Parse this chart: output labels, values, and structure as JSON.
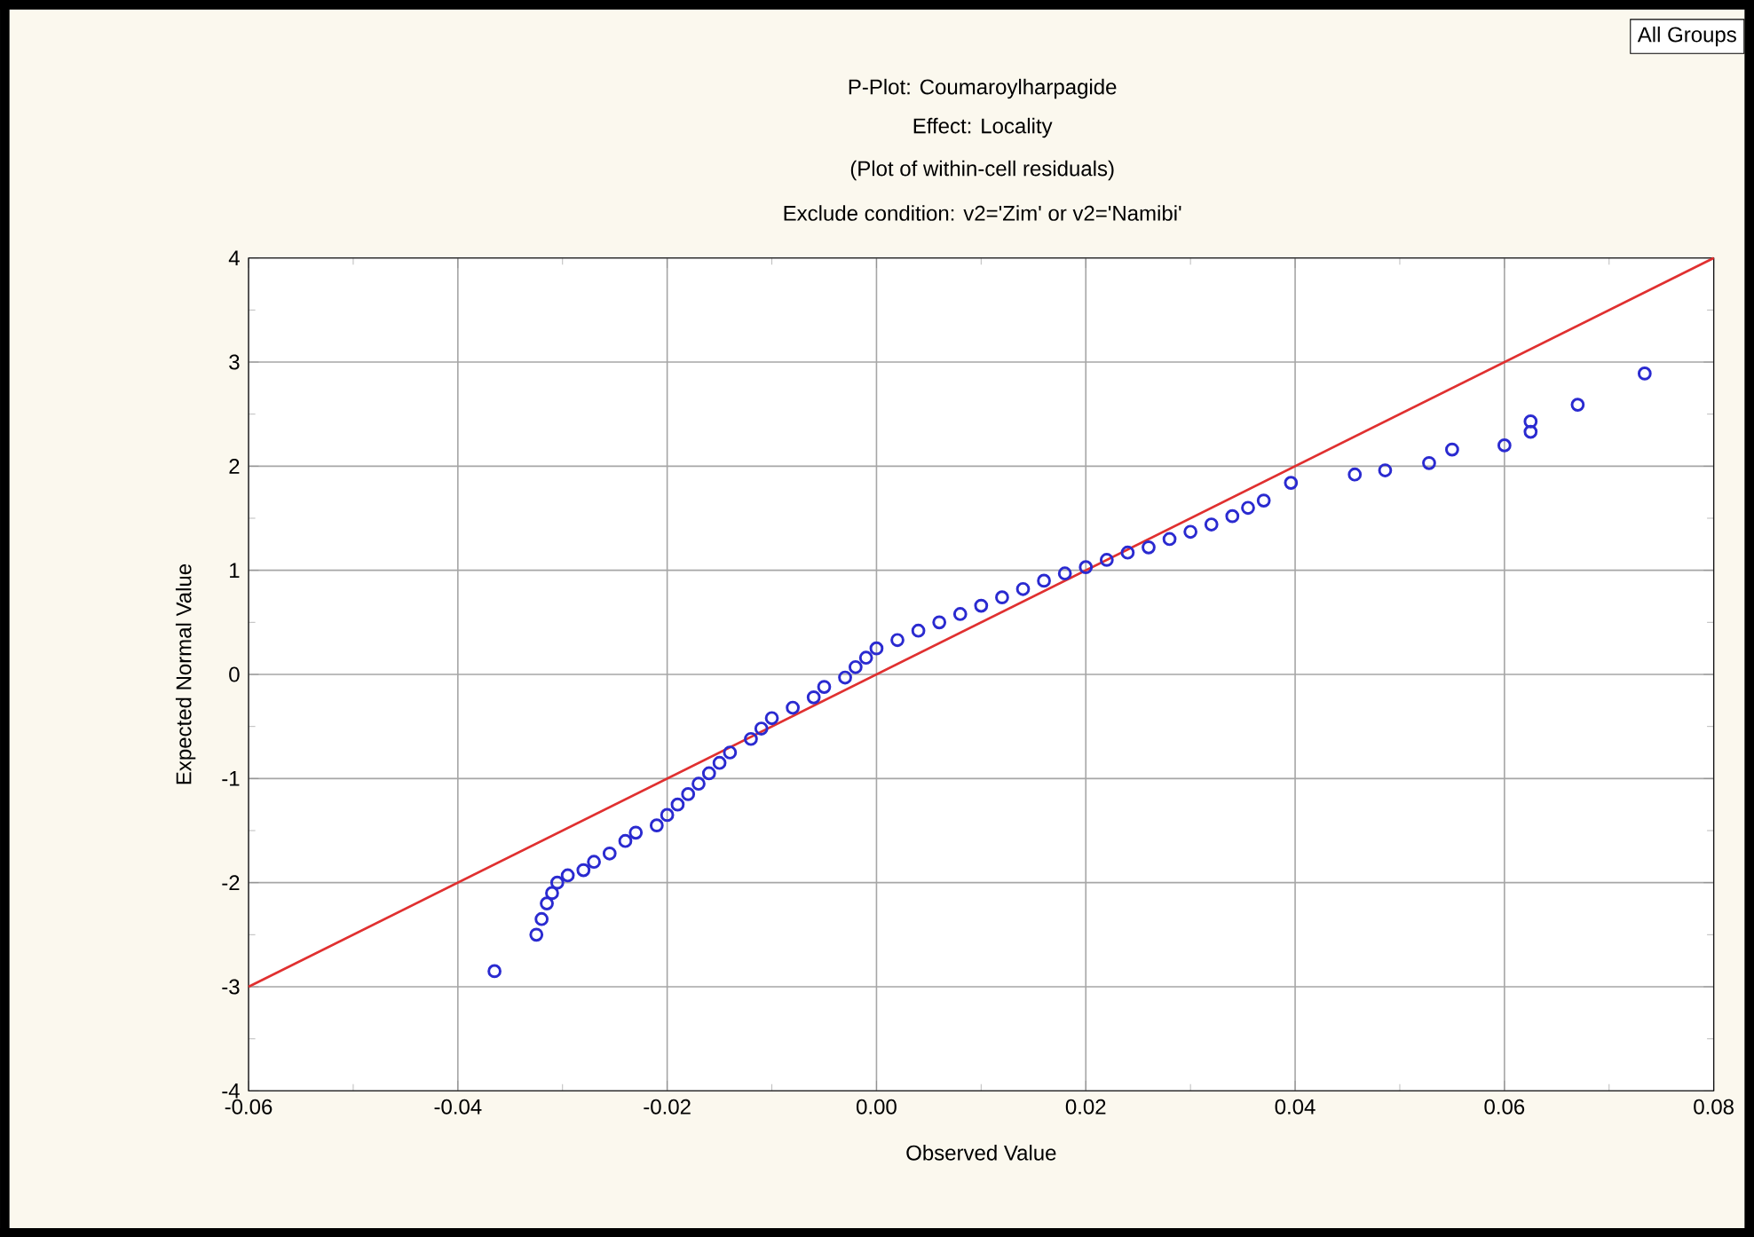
{
  "chart_data": {
    "type": "scatter",
    "title": "P-Plot: Coumaroylharpagide",
    "subtitle": "Effect: Locality",
    "xlabel": "Observed Value",
    "ylabel": "Expected Normal Value",
    "annotations": [
      "All Groups",
      "(Plot of within-cell residuals)",
      "Exclude condition: v2='Zim' or v2='Namibi'"
    ],
    "series": [
      {
        "color": "#2a2ad0",
        "marker": "circle",
        "x": [
          -0.0365,
          -0.0325,
          -0.032,
          -0.0315,
          -0.031,
          -0.0305,
          -0.0295,
          -0.028,
          -0.027,
          -0.0255,
          -0.024,
          -0.023,
          -0.021,
          -0.02,
          -0.019,
          -0.018,
          -0.017,
          -0.016,
          -0.015,
          -0.014,
          -0.012,
          -0.011,
          -0.01,
          -0.008,
          -0.006,
          -0.005,
          -0.003,
          -0.002,
          -0.001,
          0.0,
          0.002,
          0.004,
          0.006,
          0.008,
          0.01,
          0.012,
          0.014,
          0.016,
          0.018,
          0.02,
          0.022,
          0.024,
          0.026,
          0.028,
          0.03,
          0.032,
          0.034,
          0.0355,
          0.037,
          0.0396,
          0.0457,
          0.0486,
          0.0528,
          0.055,
          0.06,
          0.0625,
          0.0625,
          0.067,
          0.0734
        ],
        "values": [
          -2.85,
          -2.5,
          -2.35,
          -2.2,
          -2.1,
          -2.0,
          -1.93,
          -1.88,
          -1.8,
          -1.72,
          -1.6,
          -1.52,
          -1.45,
          -1.35,
          -1.25,
          -1.15,
          -1.05,
          -0.95,
          -0.85,
          -0.75,
          -0.62,
          -0.52,
          -0.42,
          -0.32,
          -0.22,
          -0.12,
          -0.03,
          0.07,
          0.16,
          0.25,
          0.33,
          0.42,
          0.5,
          0.58,
          0.66,
          0.74,
          0.82,
          0.9,
          0.97,
          1.03,
          1.1,
          1.17,
          1.22,
          1.3,
          1.37,
          1.44,
          1.52,
          1.6,
          1.67,
          1.84,
          1.92,
          1.96,
          2.03,
          2.16,
          2.2,
          2.33,
          2.43,
          2.59,
          2.89
        ]
      },
      {
        "type": "line",
        "color": "#e03030",
        "marker": "none",
        "x": [
          -0.06,
          0.08
        ],
        "values": [
          -3,
          4
        ]
      }
    ],
    "xlim": [
      -0.06,
      0.08
    ],
    "ylim": [
      -4,
      4
    ],
    "xticks": [
      {
        "value": -0.06,
        "label": "-0.06"
      },
      {
        "value": -0.04,
        "label": "-0.04"
      },
      {
        "value": -0.02,
        "label": "-0.02"
      },
      {
        "value": 0,
        "label": "0.00"
      },
      {
        "value": 0.02,
        "label": "0.02"
      },
      {
        "value": 0.04,
        "label": "0.04"
      },
      {
        "value": 0.06,
        "label": "0.06"
      },
      {
        "value": 0.08,
        "label": "0.08"
      }
    ],
    "yticks": [
      -4,
      -3,
      -2,
      -1,
      0,
      1,
      2,
      3,
      4
    ],
    "grid": true
  }
}
